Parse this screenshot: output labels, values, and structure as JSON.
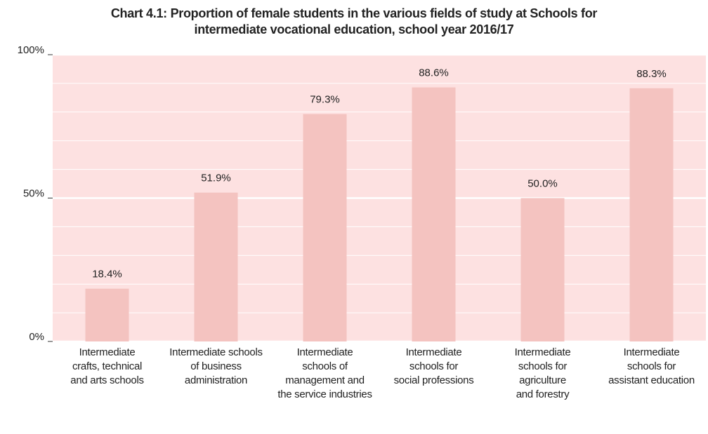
{
  "chart_data": {
    "type": "bar",
    "title": "Chart 4.1:  Proportion of female students in the various fields of study at Schools for\nintermediate vocational education, school year 2016/17",
    "categories": [
      "Intermediate\ncrafts, technical\nand arts schools",
      "Intermediate schools\nof business\nadministration",
      "Intermediate\nschools of\nmanagement and\nthe service industries",
      "Intermediate\nschools for\nsocial professions",
      "Intermediate\nschools for\nagriculture\nand forestry",
      "Intermediate\nschools for\nassistant education"
    ],
    "values": [
      18.4,
      51.9,
      79.3,
      88.6,
      50.0,
      88.3
    ],
    "value_labels": [
      "18.4%",
      "51.9%",
      "79.3%",
      "88.6%",
      "50.0%",
      "88.3%"
    ],
    "color": "#f4c3c0",
    "background": "#fde1e1",
    "ylim": [
      0,
      100
    ],
    "yticks": [
      {
        "value": 0,
        "label": "0%"
      },
      {
        "value": 50,
        "label": "50%"
      },
      {
        "value": 100,
        "label": "100%"
      }
    ],
    "minor_yticks": [
      10,
      20,
      30,
      40,
      60,
      70,
      80,
      90
    ],
    "grid": true
  }
}
